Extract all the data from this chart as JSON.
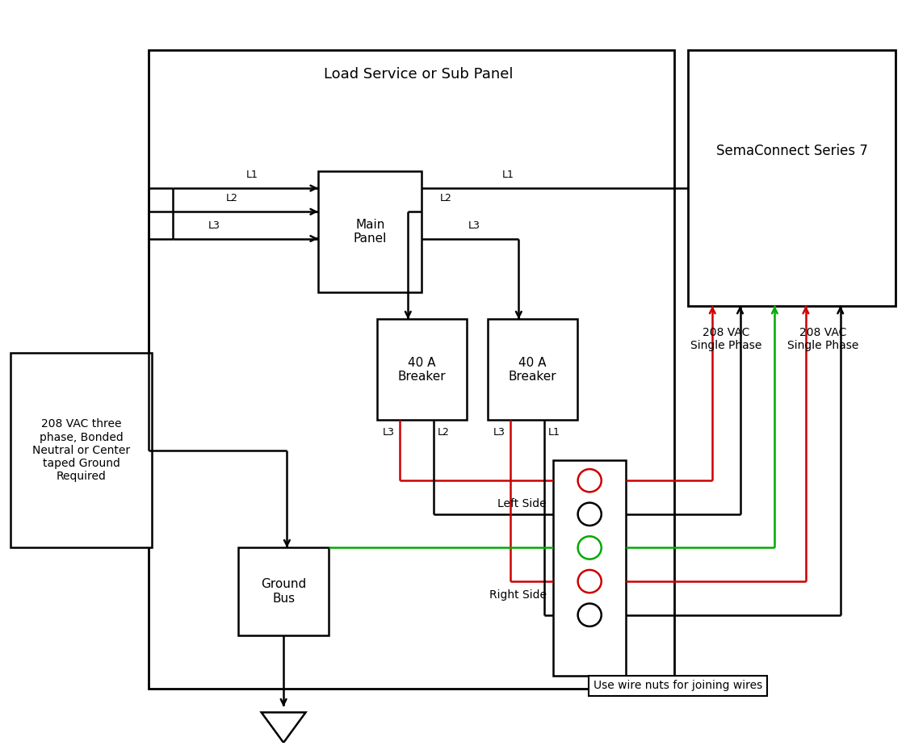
{
  "bg_color": "#ffffff",
  "line_color": "#000000",
  "red_color": "#cc0000",
  "green_color": "#00aa00",
  "figsize": [
    11.22,
    9.24
  ],
  "dpi": 100,
  "labels": {
    "load_panel": "Load Service or Sub Panel",
    "sema": "SemaConnect Series 7",
    "main_panel": "Main\nPanel",
    "breaker1": "40 A\nBreaker",
    "breaker2": "40 A\nBreaker",
    "ground_bus": "Ground\nBus",
    "source": "208 VAC three\nphase, Bonded\nNeutral or Center\ntaped Ground\nRequired",
    "left_side": "Left Side",
    "right_side": "Right Side",
    "vac_left": "208 VAC\nSingle Phase",
    "vac_right": "208 VAC\nSingle Phase",
    "wire_nuts": "Use wire nuts for joining wires"
  }
}
